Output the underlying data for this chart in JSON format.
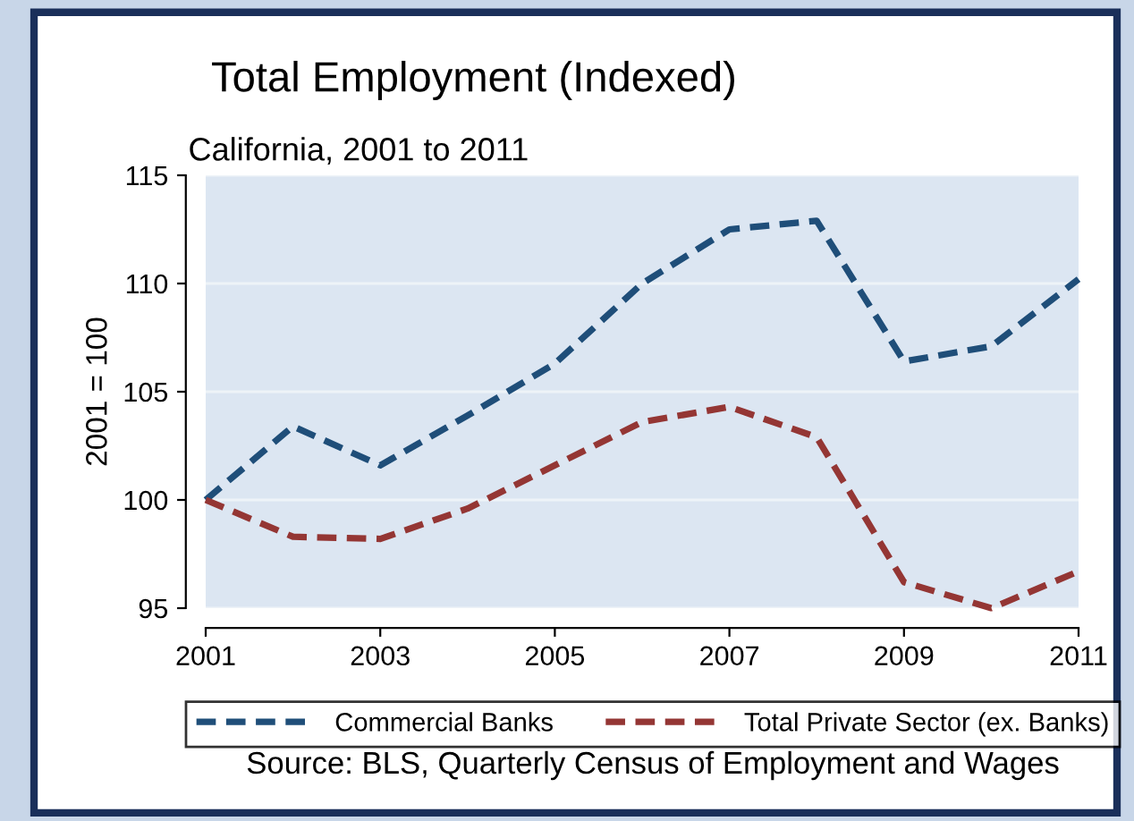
{
  "chart_data": {
    "type": "line",
    "title": "Total Employment (Indexed)",
    "subtitle": "California, 2001 to 2011",
    "ylabel": "2001 = 100",
    "x": [
      2001,
      2002,
      2003,
      2004,
      2005,
      2006,
      2007,
      2008,
      2009,
      2010,
      2011
    ],
    "series": [
      {
        "name": "Commercial Banks",
        "color": "#1f4e79",
        "values": [
          100,
          103.4,
          101.6,
          103.9,
          106.3,
          110.0,
          112.5,
          112.9,
          106.4,
          107.1,
          110.2
        ]
      },
      {
        "name": "Total Private Sector (ex. Banks)",
        "color": "#943634",
        "values": [
          100,
          98.3,
          98.2,
          99.6,
          101.6,
          103.6,
          104.3,
          102.9,
          96.2,
          95.0,
          96.7
        ]
      }
    ],
    "xlim": [
      2001,
      2011
    ],
    "xticks": [
      2001,
      2003,
      2005,
      2007,
      2009,
      2011
    ],
    "ylim": [
      95,
      115
    ],
    "yticks": [
      95,
      100,
      105,
      110,
      115
    ],
    "grid": "y",
    "legend": "bottom",
    "line_style": "dashed",
    "marker": "none",
    "annotations": [
      "Source: BLS, Quarterly Census of Employment and Wages"
    ]
  }
}
